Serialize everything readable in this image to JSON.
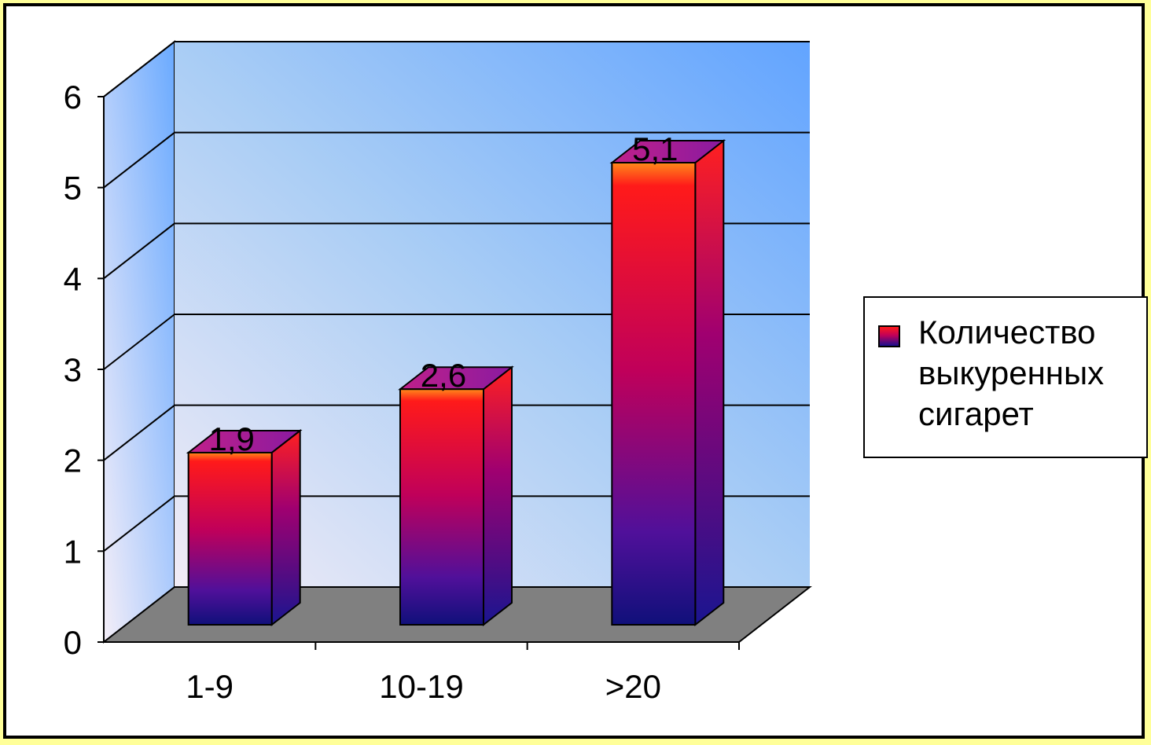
{
  "chart_data": {
    "type": "bar",
    "style": "3d-column",
    "categories": [
      "1-9",
      "10-19",
      ">20"
    ],
    "series": [
      {
        "name": "Количество выкуренных сигарет",
        "values": [
          1.9,
          2.6,
          5.1
        ],
        "labels": [
          "1,9",
          "2,6",
          "5,1"
        ]
      }
    ],
    "ylim": [
      0,
      6
    ],
    "yticks": [
      "0",
      "1",
      "2",
      "3",
      "4",
      "5",
      "6"
    ],
    "grid": true,
    "legend_position": "right",
    "colors": {
      "bar_top": "#ff1a1a",
      "bar_mid": "#c0005a",
      "bar_bottom": "#1a0f8f",
      "floor": "#808080",
      "wall_light": "#e8e0f0",
      "wall_dark": "#66a8ff",
      "page_border": "#ffff99"
    }
  },
  "legend": {
    "label_lines": [
      "Количество",
      "выкуренных",
      "сигарет"
    ]
  }
}
